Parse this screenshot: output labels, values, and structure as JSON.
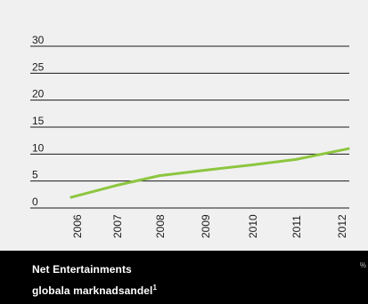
{
  "chart_data": {
    "type": "line",
    "categories": [
      "2006",
      "2007",
      "2008",
      "2009",
      "2010",
      "2011",
      "2012"
    ],
    "series": [
      {
        "values": [
          2,
          4.2,
          6,
          7,
          8,
          9,
          11
        ],
        "color": "#8dc63f"
      }
    ],
    "ylim": [
      0,
      30
    ],
    "yticks": [
      "0",
      "5",
      "10",
      "15",
      "20",
      "25",
      "30"
    ],
    "grid": true
  },
  "caption": {
    "line1": "Net Entertainments",
    "line2": "globala marknadsandel",
    "footnote": "1",
    "edge_mark": "%"
  }
}
